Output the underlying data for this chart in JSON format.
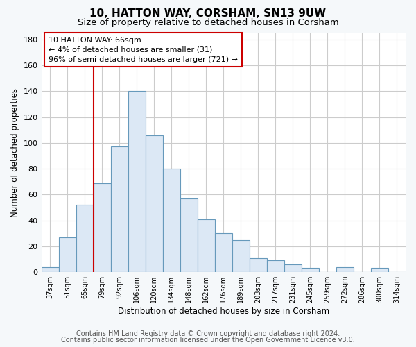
{
  "title": "10, HATTON WAY, CORSHAM, SN13 9UW",
  "subtitle": "Size of property relative to detached houses in Corsham",
  "xlabel": "Distribution of detached houses by size in Corsham",
  "ylabel": "Number of detached properties",
  "bar_labels": [
    "37sqm",
    "51sqm",
    "65sqm",
    "79sqm",
    "92sqm",
    "106sqm",
    "120sqm",
    "134sqm",
    "148sqm",
    "162sqm",
    "176sqm",
    "189sqm",
    "203sqm",
    "217sqm",
    "231sqm",
    "245sqm",
    "259sqm",
    "272sqm",
    "286sqm",
    "300sqm",
    "314sqm"
  ],
  "bar_values": [
    4,
    27,
    52,
    69,
    97,
    140,
    106,
    80,
    57,
    41,
    30,
    25,
    11,
    9,
    6,
    3,
    0,
    4,
    0,
    3,
    0
  ],
  "bar_color": "#dce8f5",
  "bar_edge_color": "#6699bb",
  "vline_color": "#cc0000",
  "annotation_title": "10 HATTON WAY: 66sqm",
  "annotation_line1": "← 4% of detached houses are smaller (31)",
  "annotation_line2": "96% of semi-detached houses are larger (721) →",
  "annotation_box_edge": "#cc0000",
  "ylim": [
    0,
    185
  ],
  "yticks": [
    0,
    20,
    40,
    60,
    80,
    100,
    120,
    140,
    160,
    180
  ],
  "footer1": "Contains HM Land Registry data © Crown copyright and database right 2024.",
  "footer2": "Contains public sector information licensed under the Open Government Licence v3.0.",
  "background_color": "#f5f8fa",
  "plot_background": "#ffffff",
  "grid_color": "#cccccc",
  "title_fontsize": 11,
  "subtitle_fontsize": 9.5,
  "footer_fontsize": 7
}
